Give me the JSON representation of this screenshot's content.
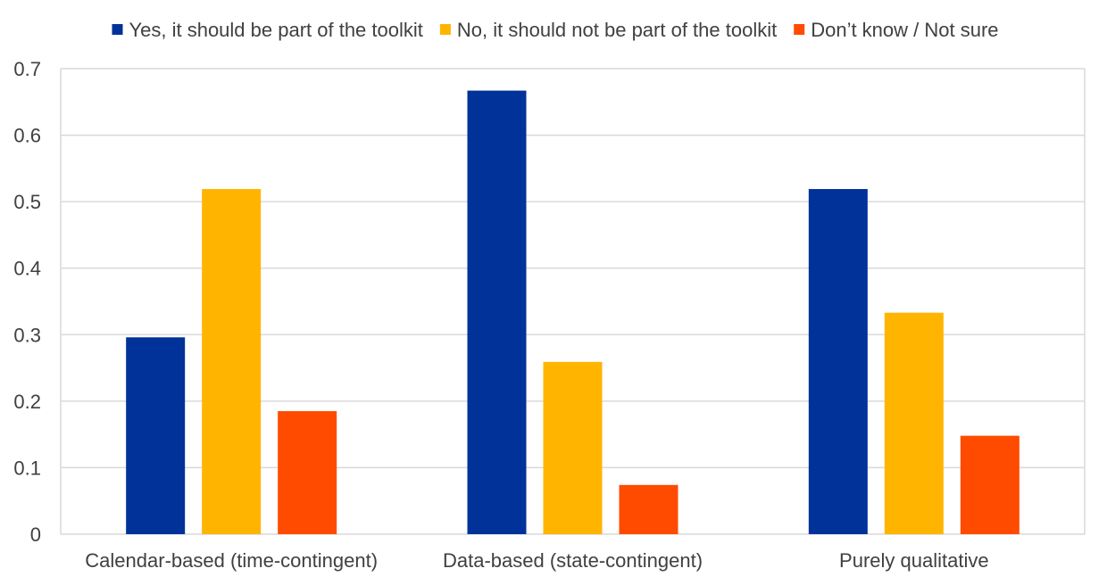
{
  "chart_data": {
    "type": "bar",
    "categories": [
      "Calendar-based (time-contingent)",
      "Data-based (state-contingent)",
      "Purely qualitative"
    ],
    "series": [
      {
        "name": "Yes, it should be part of the toolkit",
        "values": [
          0.296,
          0.667,
          0.519
        ],
        "color": "#003299"
      },
      {
        "name": "No, it should not be part of the toolkit",
        "values": [
          0.519,
          0.259,
          0.333
        ],
        "color": "#FFB400"
      },
      {
        "name": "Don’t know / Not sure",
        "values": [
          0.185,
          0.074,
          0.148
        ],
        "color": "#FF4B00"
      }
    ],
    "ylim": [
      0,
      0.7
    ],
    "yticks": [
      "0",
      "0.1",
      "0.2",
      "0.3",
      "0.4",
      "0.5",
      "0.6",
      "0.7"
    ],
    "grid": true,
    "legend_position": "top",
    "gridline_color": "#d9d9d9",
    "axis_color": "#d9d9d9"
  }
}
